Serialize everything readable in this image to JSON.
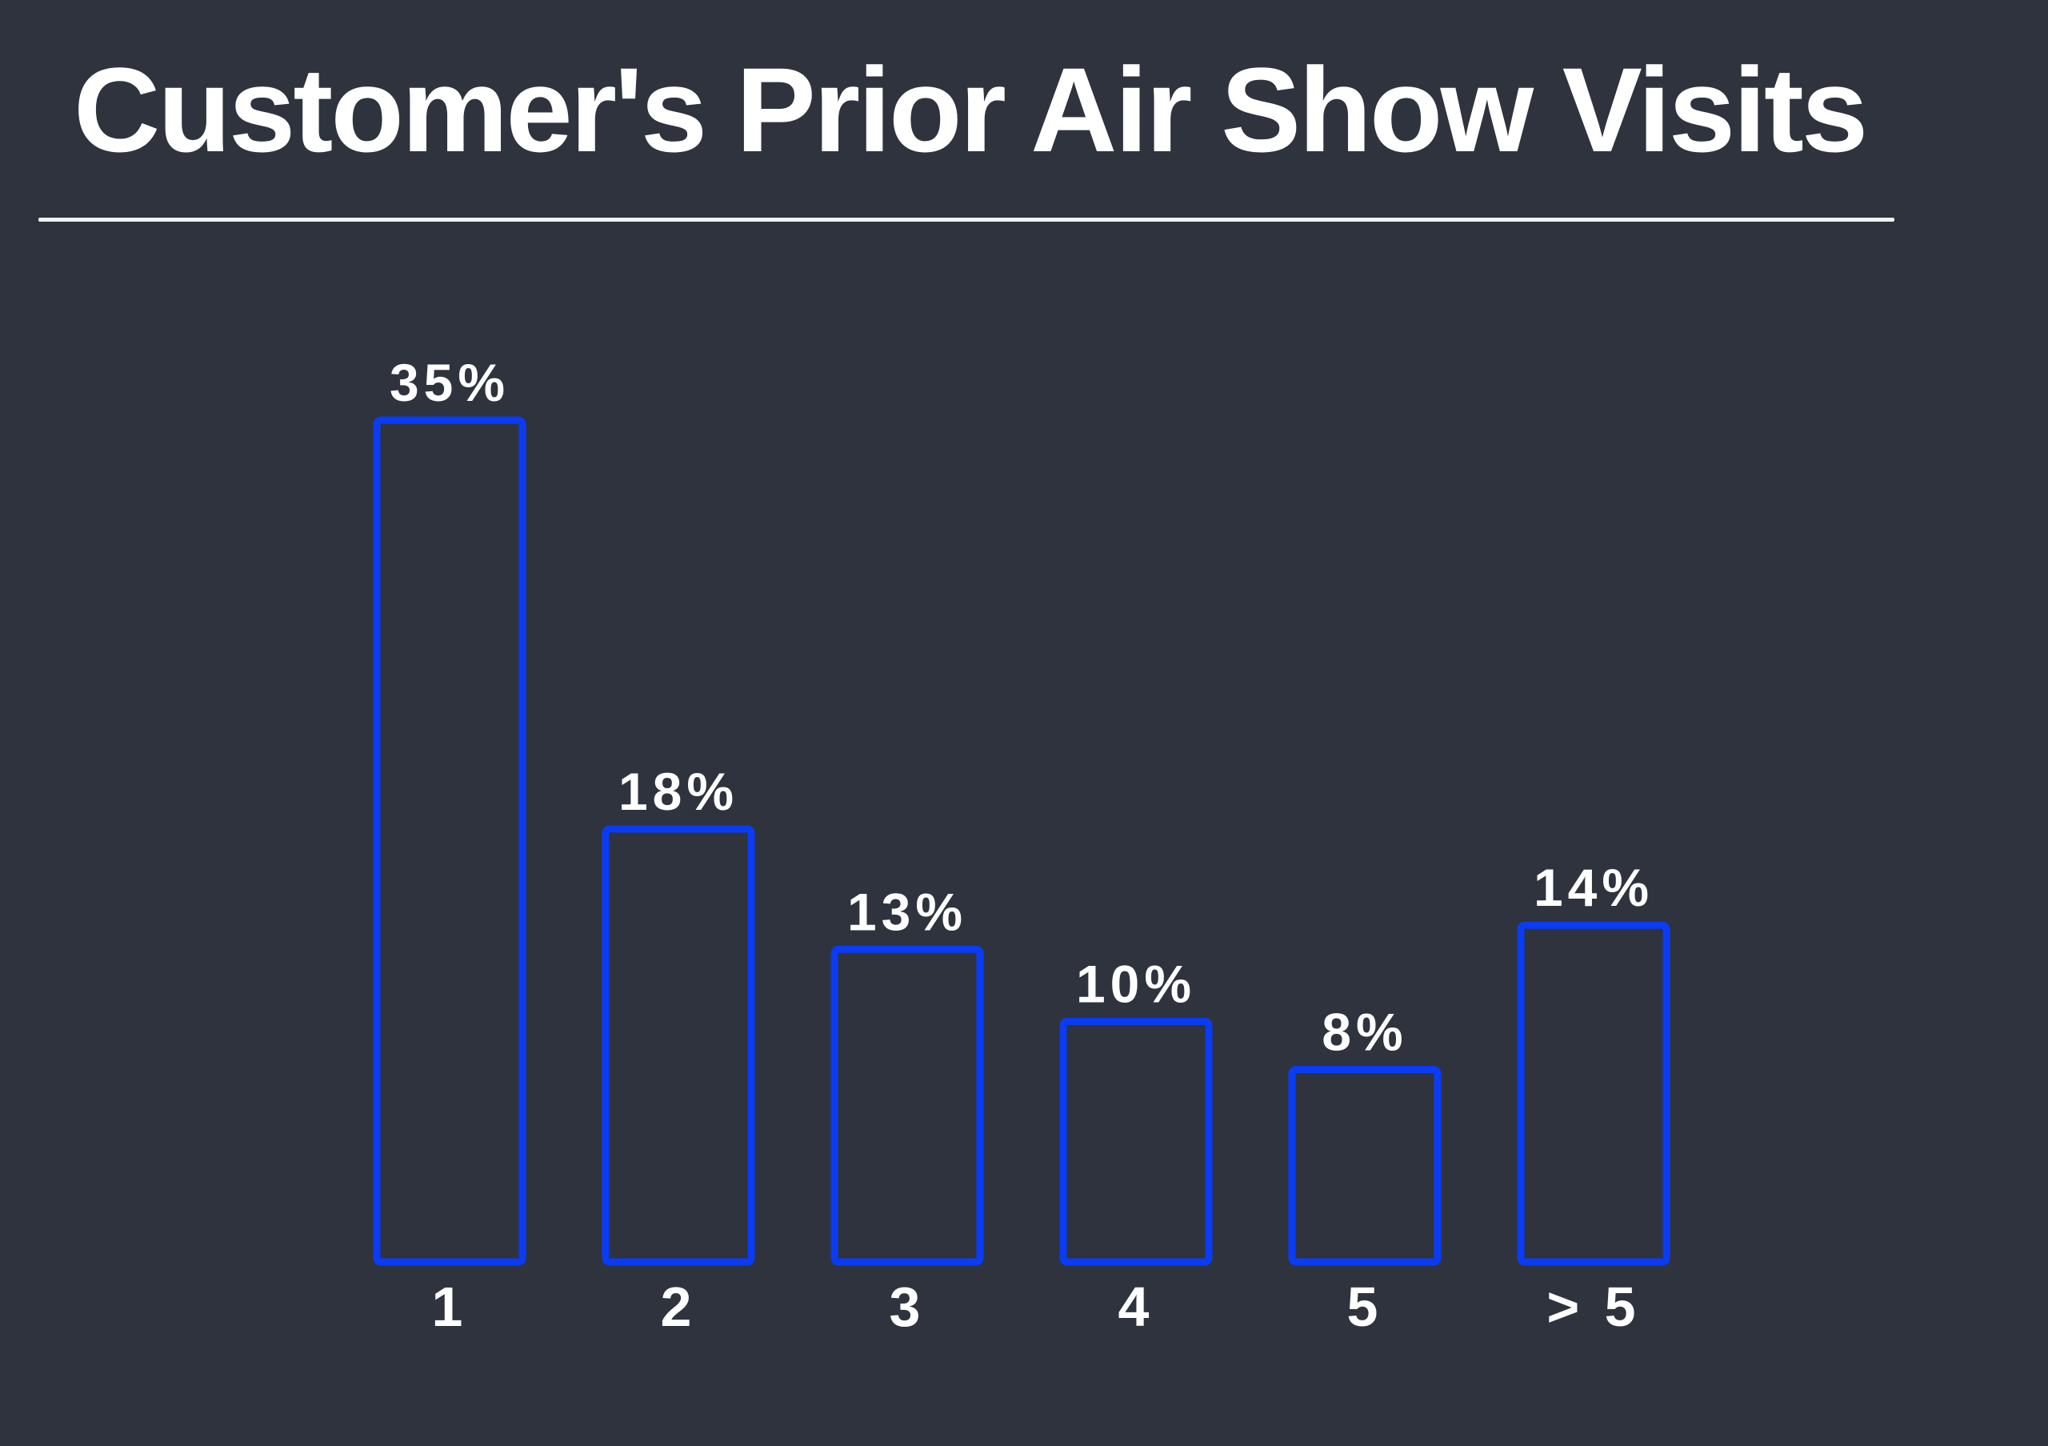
{
  "title": "Customer's Prior Air Show Visits",
  "colors": {
    "background": "#2e333d",
    "bar_outline": "#0a3cf5",
    "text": "#ffffff",
    "rule": "#f2f2f2"
  },
  "chart_data": {
    "type": "bar",
    "categories": [
      "1",
      "2",
      "3",
      "4",
      "5",
      "> 5"
    ],
    "values": [
      35,
      18,
      13,
      10,
      8,
      14
    ],
    "value_labels": [
      "35%",
      "18%",
      "13%",
      "10%",
      "8%",
      "14%"
    ],
    "unit": "%",
    "title": "",
    "xlabel": "",
    "ylabel": "",
    "ylim": [
      0,
      35
    ],
    "grid": false,
    "legend": "none",
    "bar_style": "outline"
  }
}
